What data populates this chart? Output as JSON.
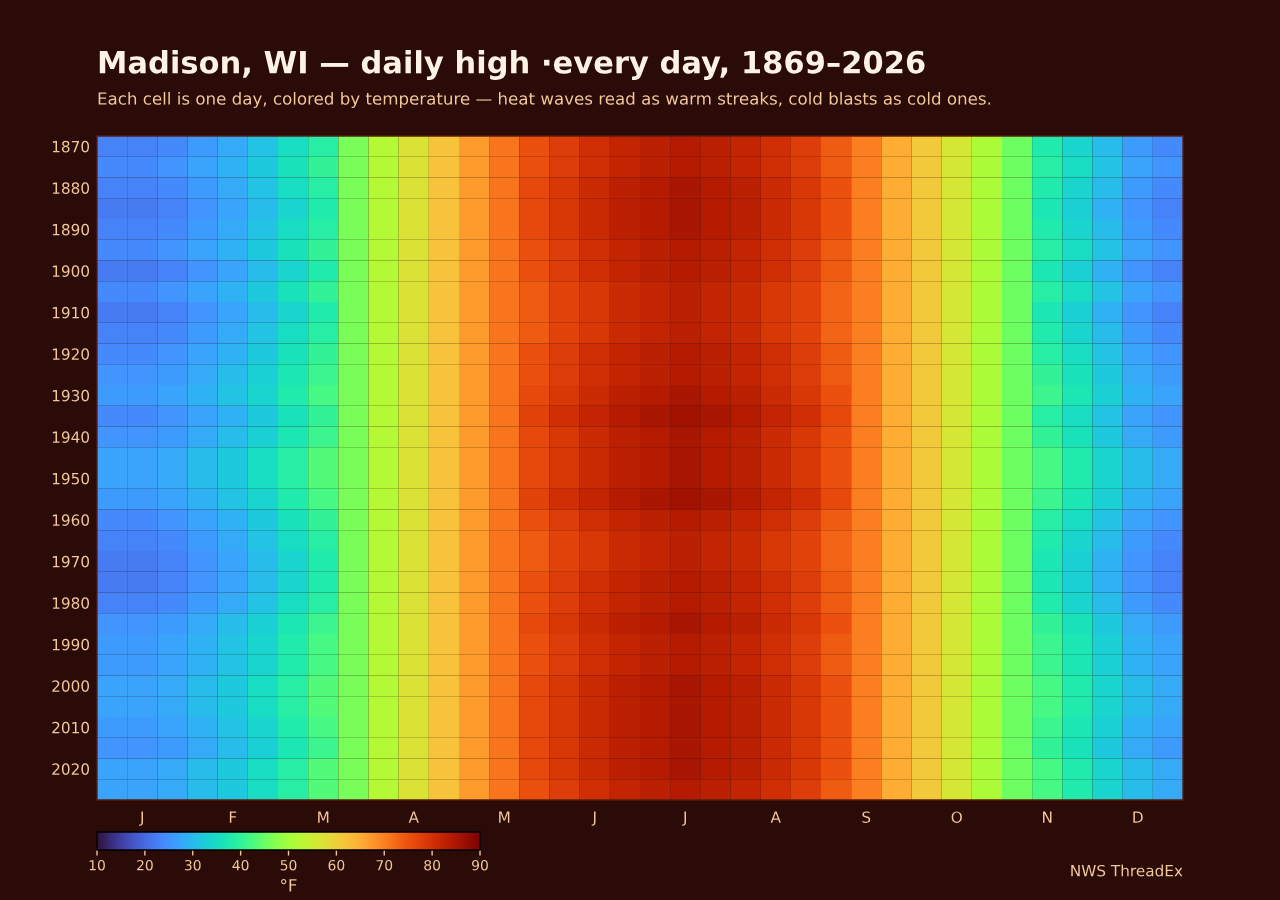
{
  "chart_data": {
    "type": "heatmap",
    "title": "Madison, WI — daily high ·every day, 1869–2026",
    "subtitle": "Each cell is one day, colored by temperature — heat waves read as warm streaks, cold blasts as cold ones.",
    "annotations": [
      "NWS ThreadEx"
    ],
    "clabel": "°F",
    "clim": [
      10,
      90
    ],
    "cticks": [
      10,
      20,
      30,
      40,
      50,
      60,
      70,
      80,
      90
    ],
    "categories": [
      null,
      "J",
      null,
      null,
      "F",
      null,
      null,
      "M",
      null,
      null,
      "A",
      null,
      null,
      "M",
      null,
      null,
      "J",
      null,
      null,
      "J",
      null,
      null,
      "A",
      null,
      null,
      "S",
      null,
      null,
      "O",
      null,
      null,
      "N",
      null,
      null,
      "D",
      null
    ],
    "y_categories": [
      "1870",
      null,
      "1880",
      null,
      "1890",
      null,
      "1900",
      null,
      "1910",
      null,
      "1920",
      null,
      "1930",
      null,
      "1940",
      null,
      "1950",
      null,
      "1960",
      null,
      "1970",
      null,
      "1980",
      null,
      "1990",
      null,
      "2000",
      null,
      "2010",
      null,
      "2020",
      null
    ],
    "cells": [
      [
        23,
        23,
        24,
        26,
        28,
        31,
        35,
        39,
        46,
        52,
        57,
        62,
        67,
        71,
        75,
        78,
        80,
        82,
        83,
        84,
        83,
        82,
        80,
        78,
        74,
        70,
        65,
        61,
        56,
        51,
        45,
        38,
        34,
        30,
        26,
        24
      ],
      [
        24,
        24,
        25,
        27,
        29,
        32,
        36,
        40,
        46,
        52,
        57,
        62,
        67,
        71,
        75,
        78,
        80,
        82,
        83,
        84,
        83,
        82,
        80,
        78,
        74,
        70,
        65,
        61,
        56,
        51,
        45,
        39,
        35,
        31,
        27,
        25
      ],
      [
        23,
        23,
        24,
        26,
        28,
        31,
        35,
        39,
        46,
        52,
        57,
        62,
        67,
        71,
        76,
        79,
        81,
        83,
        84,
        85,
        84,
        83,
        81,
        79,
        75,
        70,
        65,
        61,
        56,
        51,
        45,
        38,
        34,
        30,
        26,
        24
      ],
      [
        22,
        22,
        23,
        25,
        27,
        30,
        34,
        38,
        46,
        52,
        57,
        62,
        67,
        71,
        76,
        79,
        81,
        83,
        84,
        85,
        84,
        83,
        81,
        79,
        75,
        70,
        65,
        61,
        56,
        51,
        45,
        37,
        33,
        29,
        25,
        23
      ],
      [
        23,
        23,
        24,
        26,
        28,
        31,
        35,
        39,
        46,
        52,
        57,
        62,
        67,
        71,
        76,
        79,
        81,
        83,
        84,
        85,
        84,
        83,
        81,
        79,
        75,
        70,
        65,
        61,
        56,
        51,
        45,
        38,
        34,
        30,
        26,
        24
      ],
      [
        24,
        24,
        25,
        27,
        29,
        32,
        36,
        40,
        46,
        52,
        57,
        62,
        67,
        71,
        75,
        78,
        80,
        82,
        83,
        84,
        83,
        82,
        80,
        78,
        74,
        70,
        65,
        61,
        56,
        51,
        45,
        39,
        35,
        31,
        27,
        25
      ],
      [
        22,
        22,
        23,
        25,
        27,
        30,
        34,
        38,
        46,
        52,
        57,
        62,
        67,
        71,
        75,
        78,
        80,
        82,
        83,
        84,
        83,
        82,
        80,
        78,
        74,
        70,
        65,
        61,
        56,
        51,
        45,
        37,
        33,
        29,
        25,
        23
      ],
      [
        24,
        24,
        25,
        27,
        29,
        32,
        36,
        40,
        46,
        52,
        57,
        62,
        67,
        71,
        74,
        77,
        79,
        81,
        82,
        83,
        82,
        81,
        79,
        77,
        73,
        70,
        65,
        61,
        56,
        51,
        45,
        39,
        35,
        31,
        27,
        25
      ],
      [
        22,
        22,
        23,
        25,
        27,
        30,
        34,
        38,
        46,
        52,
        57,
        62,
        67,
        71,
        74,
        77,
        79,
        81,
        82,
        83,
        82,
        81,
        79,
        77,
        73,
        70,
        65,
        61,
        56,
        51,
        45,
        37,
        33,
        29,
        25,
        23
      ],
      [
        23,
        23,
        24,
        26,
        28,
        31,
        35,
        39,
        46,
        52,
        57,
        62,
        67,
        71,
        74,
        77,
        79,
        81,
        82,
        83,
        82,
        81,
        79,
        77,
        73,
        70,
        65,
        61,
        56,
        51,
        45,
        38,
        34,
        30,
        26,
        24
      ],
      [
        24,
        24,
        25,
        27,
        29,
        32,
        36,
        40,
        46,
        52,
        57,
        62,
        67,
        71,
        75,
        78,
        80,
        82,
        83,
        84,
        83,
        82,
        80,
        78,
        74,
        70,
        65,
        61,
        56,
        51,
        45,
        39,
        35,
        31,
        27,
        25
      ],
      [
        25,
        25,
        26,
        28,
        30,
        33,
        37,
        41,
        46,
        52,
        57,
        62,
        67,
        71,
        75,
        78,
        80,
        82,
        83,
        84,
        83,
        82,
        80,
        78,
        74,
        70,
        65,
        61,
        56,
        51,
        45,
        40,
        36,
        32,
        28,
        26
      ],
      [
        26,
        26,
        27,
        29,
        31,
        34,
        38,
        42,
        46,
        52,
        57,
        62,
        67,
        71,
        76,
        79,
        81,
        83,
        84,
        85,
        84,
        83,
        81,
        79,
        75,
        70,
        65,
        61,
        56,
        51,
        45,
        41,
        37,
        33,
        29,
        27
      ],
      [
        24,
        24,
        25,
        27,
        29,
        32,
        36,
        40,
        46,
        52,
        57,
        62,
        67,
        71,
        77,
        80,
        82,
        84,
        85,
        86,
        85,
        84,
        82,
        80,
        76,
        70,
        65,
        61,
        56,
        51,
        45,
        39,
        35,
        31,
        27,
        25
      ],
      [
        25,
        25,
        26,
        28,
        30,
        33,
        37,
        41,
        46,
        52,
        57,
        62,
        67,
        71,
        76,
        79,
        81,
        83,
        84,
        85,
        84,
        83,
        81,
        79,
        75,
        70,
        65,
        61,
        56,
        51,
        45,
        40,
        36,
        32,
        28,
        26
      ],
      [
        27,
        27,
        28,
        30,
        32,
        35,
        39,
        43,
        46,
        52,
        57,
        62,
        67,
        71,
        76,
        79,
        81,
        83,
        84,
        85,
        84,
        83,
        81,
        79,
        75,
        70,
        65,
        61,
        56,
        51,
        45,
        42,
        38,
        34,
        30,
        28
      ],
      [
        27,
        27,
        28,
        30,
        32,
        35,
        39,
        43,
        46,
        52,
        57,
        62,
        67,
        71,
        76,
        79,
        81,
        83,
        84,
        85,
        84,
        83,
        81,
        79,
        75,
        70,
        65,
        61,
        56,
        51,
        45,
        42,
        38,
        34,
        30,
        28
      ],
      [
        26,
        26,
        27,
        29,
        31,
        34,
        38,
        42,
        46,
        52,
        57,
        62,
        67,
        71,
        77,
        80,
        82,
        84,
        85,
        86,
        85,
        84,
        82,
        80,
        76,
        70,
        65,
        61,
        56,
        51,
        45,
        41,
        37,
        33,
        29,
        27
      ],
      [
        24,
        24,
        25,
        27,
        29,
        32,
        36,
        40,
        46,
        52,
        57,
        62,
        67,
        71,
        75,
        78,
        80,
        82,
        83,
        84,
        83,
        82,
        80,
        78,
        74,
        70,
        65,
        61,
        56,
        51,
        45,
        39,
        35,
        31,
        27,
        25
      ],
      [
        23,
        23,
        24,
        26,
        28,
        31,
        35,
        39,
        46,
        52,
        57,
        62,
        67,
        71,
        74,
        77,
        79,
        81,
        82,
        83,
        82,
        81,
        79,
        77,
        73,
        70,
        65,
        61,
        56,
        51,
        45,
        38,
        34,
        30,
        26,
        24
      ],
      [
        22,
        22,
        23,
        25,
        27,
        30,
        34,
        38,
        46,
        52,
        57,
        62,
        67,
        71,
        74,
        77,
        79,
        81,
        82,
        83,
        82,
        81,
        79,
        77,
        73,
        70,
        65,
        61,
        56,
        51,
        45,
        37,
        33,
        29,
        25,
        23
      ],
      [
        22,
        22,
        23,
        25,
        27,
        30,
        34,
        38,
        46,
        52,
        57,
        62,
        67,
        71,
        75,
        78,
        80,
        82,
        83,
        84,
        83,
        82,
        80,
        78,
        74,
        70,
        65,
        61,
        56,
        51,
        45,
        37,
        33,
        29,
        25,
        23
      ],
      [
        23,
        23,
        24,
        26,
        28,
        31,
        35,
        39,
        46,
        52,
        57,
        62,
        67,
        71,
        75,
        78,
        80,
        82,
        83,
        84,
        83,
        82,
        80,
        78,
        74,
        70,
        65,
        61,
        56,
        51,
        45,
        38,
        34,
        30,
        26,
        24
      ],
      [
        25,
        25,
        26,
        28,
        30,
        33,
        37,
        41,
        46,
        52,
        57,
        62,
        67,
        71,
        76,
        79,
        81,
        83,
        84,
        85,
        84,
        83,
        81,
        79,
        75,
        70,
        65,
        61,
        56,
        51,
        45,
        40,
        36,
        32,
        28,
        26
      ],
      [
        26,
        26,
        27,
        29,
        31,
        34,
        38,
        42,
        46,
        52,
        57,
        62,
        67,
        71,
        75,
        78,
        80,
        82,
        83,
        84,
        83,
        82,
        80,
        78,
        74,
        70,
        65,
        61,
        56,
        51,
        45,
        41,
        37,
        33,
        29,
        27
      ],
      [
        26,
        26,
        27,
        29,
        31,
        34,
        38,
        42,
        46,
        52,
        57,
        62,
        67,
        71,
        75,
        78,
        80,
        82,
        83,
        84,
        83,
        82,
        80,
        78,
        74,
        70,
        65,
        61,
        56,
        51,
        45,
        41,
        37,
        33,
        29,
        27
      ],
      [
        27,
        27,
        28,
        30,
        32,
        35,
        39,
        43,
        46,
        52,
        57,
        62,
        67,
        71,
        76,
        79,
        81,
        83,
        84,
        85,
        84,
        83,
        81,
        79,
        75,
        70,
        65,
        61,
        56,
        51,
        45,
        42,
        38,
        34,
        30,
        28
      ],
      [
        27,
        27,
        28,
        30,
        32,
        35,
        39,
        43,
        46,
        52,
        57,
        62,
        67,
        71,
        76,
        79,
        81,
        83,
        84,
        85,
        84,
        83,
        81,
        79,
        75,
        70,
        65,
        61,
        56,
        51,
        45,
        42,
        38,
        34,
        30,
        28
      ],
      [
        26,
        26,
        27,
        29,
        31,
        34,
        38,
        42,
        46,
        52,
        57,
        62,
        67,
        71,
        76,
        79,
        81,
        83,
        84,
        85,
        84,
        83,
        81,
        79,
        75,
        70,
        65,
        61,
        56,
        51,
        45,
        41,
        37,
        33,
        29,
        27
      ],
      [
        25,
        25,
        26,
        28,
        30,
        33,
        37,
        41,
        46,
        52,
        57,
        62,
        67,
        71,
        76,
        79,
        81,
        83,
        84,
        85,
        84,
        83,
        81,
        79,
        75,
        70,
        65,
        61,
        56,
        51,
        45,
        40,
        36,
        32,
        28,
        26
      ],
      [
        27,
        27,
        28,
        30,
        32,
        35,
        39,
        43,
        46,
        52,
        57,
        62,
        67,
        71,
        76,
        79,
        81,
        83,
        84,
        85,
        84,
        83,
        81,
        79,
        75,
        70,
        65,
        61,
        56,
        51,
        45,
        42,
        38,
        34,
        30,
        28
      ],
      [
        27,
        27,
        28,
        30,
        32,
        35,
        39,
        43,
        46,
        52,
        57,
        62,
        67,
        71,
        75,
        78,
        80,
        82,
        83,
        84,
        83,
        82,
        80,
        78,
        74,
        70,
        65,
        61,
        56,
        51,
        45,
        42,
        38,
        34,
        30,
        28
      ]
    ]
  }
}
